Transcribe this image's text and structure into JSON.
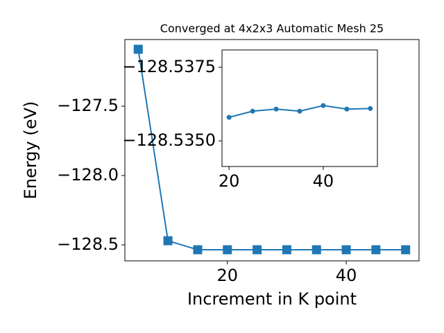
{
  "chart_data": [
    {
      "type": "line",
      "title": "Converged at 4x2x3 Automatic Mesh 25",
      "x_label": "Increment in K point",
      "y_label": "Energy (eV)",
      "x": [
        5,
        10,
        15,
        20,
        25,
        30,
        35,
        40,
        45,
        50
      ],
      "series": [
        {
          "color": "#1f77b4",
          "marker": "square",
          "values": [
            -127.09,
            -128.47,
            -128.535,
            -128.535,
            -128.535,
            -128.535,
            -128.535,
            -128.535,
            -128.535,
            -128.535
          ]
        }
      ],
      "xlim": [
        2.75,
        52.25
      ],
      "ylim": [
        -128.615,
        -127.02
      ],
      "xticks": [
        20,
        40
      ],
      "yticks": [
        {
          "value": -127.5,
          "label": "−127.5"
        },
        {
          "value": -128.0,
          "label": "−128.0"
        },
        {
          "value": -128.5,
          "label": "−128.5"
        }
      ]
    },
    {
      "type": "line",
      "x": [
        20,
        25,
        30,
        35,
        40,
        45,
        50
      ],
      "series": [
        {
          "color": "#1f77b4",
          "marker": "circle",
          "values": [
            -128.5358,
            -128.53601,
            -128.53608,
            -128.53601,
            -128.5362,
            -128.53608,
            -128.5361
          ]
        }
      ],
      "xlim": [
        18.5,
        51.5
      ],
      "ylim": [
        -128.53413,
        -128.53809
      ],
      "xticks": [
        20,
        40
      ],
      "yticks": [
        {
          "value": -128.5375,
          "label": "−128.5375"
        },
        {
          "value": -128.535,
          "label": "−128.5350"
        }
      ]
    }
  ]
}
